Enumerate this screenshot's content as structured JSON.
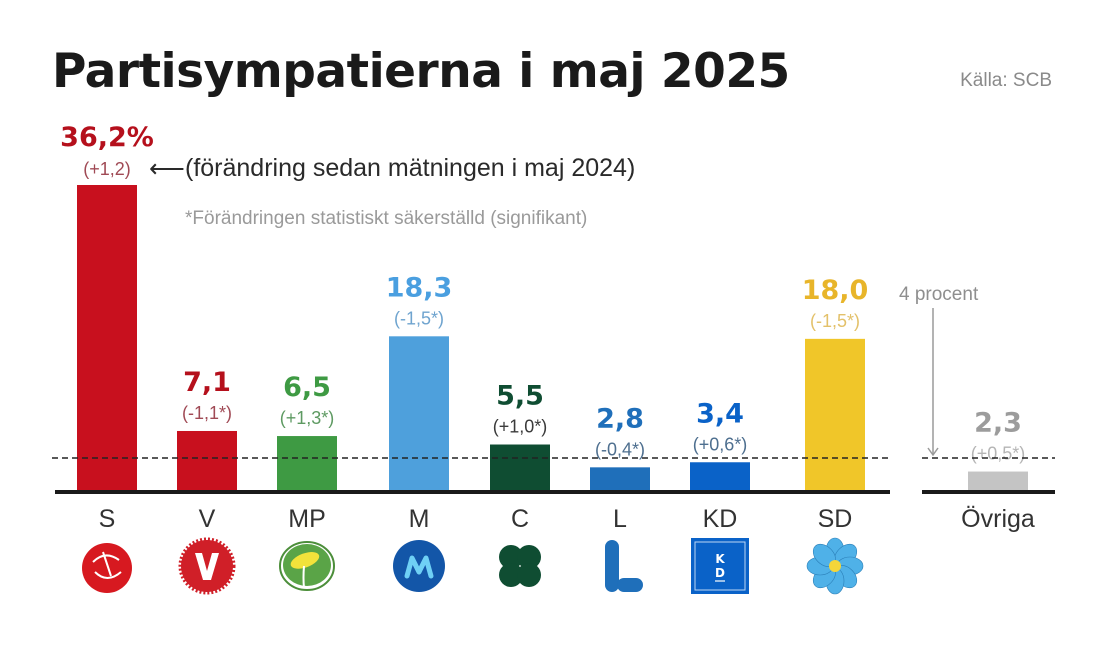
{
  "header": {
    "title": "Partisympatierna i maj 2025",
    "source": "Källa: SCB"
  },
  "annotations": {
    "change_note": "(förändring sedan mätningen i maj 2024)",
    "arrow": "⟵",
    "significance_note": "*Förändringen statistiskt säkerställd (signifikant)",
    "threshold_label": "4 procent"
  },
  "chart_data": {
    "type": "bar",
    "title": "Partisympatierna i maj 2025",
    "xlabel": "",
    "ylabel": "",
    "unit": "%",
    "ylim": [
      0,
      40
    ],
    "threshold": 4,
    "threshold_label": "4 procent",
    "grid": false,
    "categories": [
      "S",
      "V",
      "MP",
      "M",
      "C",
      "L",
      "KD",
      "SD",
      "Övriga"
    ],
    "values": [
      36.2,
      7.1,
      6.5,
      18.3,
      5.5,
      2.8,
      3.4,
      18.0,
      2.3
    ],
    "value_labels": [
      "36,2%",
      "7,1",
      "6,5",
      "18,3",
      "5,5",
      "2,8",
      "3,4",
      "18,0",
      "2,3"
    ],
    "changes": [
      1.2,
      -1.1,
      1.3,
      -1.5,
      1.0,
      -0.4,
      0.6,
      -1.5,
      0.5
    ],
    "change_labels": [
      "(+1,2)",
      "(-1,1*)",
      "(+1,3*)",
      "(-1,5*)",
      "(+1,0*)",
      "(-0,4*)",
      "(+0,6*)",
      "(-1,5*)",
      "(+0,5*)"
    ],
    "significant": [
      false,
      true,
      true,
      true,
      true,
      true,
      true,
      true,
      true
    ],
    "colors": [
      "#c8101e",
      "#c8101e",
      "#3e9a43",
      "#4ea0dc",
      "#0f4d32",
      "#1f6fba",
      "#0a62c8",
      "#f0c629",
      "#c4c4c4"
    ],
    "value_colors": [
      "#b5101c",
      "#b5101c",
      "#3e9a43",
      "#4a9fe0",
      "#0f4d32",
      "#1f6fba",
      "#0a62c8",
      "#e8b52a",
      "#9c9c9c"
    ],
    "change_colors": [
      "#a04a55",
      "#a04a55",
      "#5e9a62",
      "#6fa4cf",
      "#3b3b3b",
      "#4e6f8f",
      "#4e6f8f",
      "#e3c16a",
      "#b5b5b5"
    ],
    "logos": [
      "rose-icon",
      "v-logo-icon",
      "dandelion-icon",
      "m-logo-icon",
      "clover-icon",
      "l-logo-icon",
      "kd-logo-icon",
      "anemone-icon",
      ""
    ]
  }
}
